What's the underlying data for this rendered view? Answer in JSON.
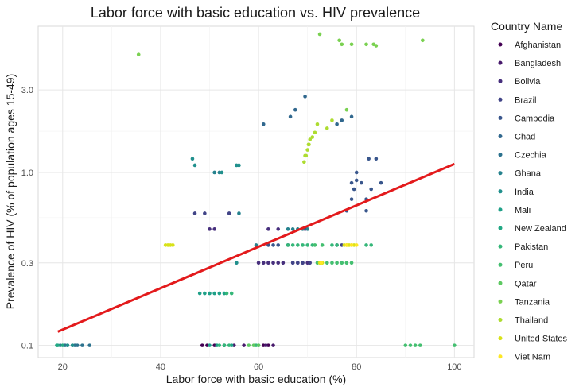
{
  "chart_data": {
    "type": "scatter",
    "title": "Labor force with basic education vs. HIV prevalence",
    "xlabel": "Labor force with basic education (%)",
    "ylabel": "Prevalence of HIV (% of population ages 15-49)",
    "xlim": [
      15,
      104
    ],
    "ylim": [
      0.085,
      7.0
    ],
    "y_scale": "log10",
    "x_ticks": [
      20,
      40,
      60,
      80,
      100
    ],
    "y_ticks": [
      0.1,
      0.3,
      1.0,
      3.0
    ],
    "y_tick_labels": [
      "0.1",
      "0.3",
      "1.0",
      "3.0"
    ],
    "grid": true,
    "legend_title": "Country Name",
    "legend_position": "right",
    "trend_line": {
      "color": "#e31a1c",
      "x": [
        19,
        100
      ],
      "y": [
        0.12,
        1.12
      ]
    },
    "series": [
      {
        "name": "Afghanistan",
        "color": "#440154",
        "points": [
          [
            48.5,
            0.1
          ],
          [
            49.5,
            0.1
          ],
          [
            51,
            0.1
          ],
          [
            53,
            0.1
          ],
          [
            61,
            0.1
          ],
          [
            62,
            0.1
          ]
        ]
      },
      {
        "name": "Bangladesh",
        "color": "#481a6c",
        "points": [
          [
            55,
            0.1
          ],
          [
            57,
            0.1
          ],
          [
            61.5,
            0.1
          ],
          [
            63,
            0.1
          ]
        ]
      },
      {
        "name": "Bolivia",
        "color": "#472f7d",
        "points": [
          [
            50,
            0.47
          ],
          [
            51,
            0.47
          ],
          [
            62,
            0.47
          ],
          [
            64,
            0.47
          ],
          [
            69.5,
            0.47
          ],
          [
            60,
            0.3
          ],
          [
            61,
            0.3
          ],
          [
            62,
            0.3
          ],
          [
            63,
            0.3
          ],
          [
            64,
            0.3
          ],
          [
            65,
            0.3
          ],
          [
            67,
            0.3
          ],
          [
            68,
            0.3
          ],
          [
            69,
            0.3
          ],
          [
            70,
            0.3
          ]
        ]
      },
      {
        "name": "Brazil",
        "color": "#414487",
        "points": [
          [
            47,
            0.58
          ],
          [
            49,
            0.58
          ],
          [
            54,
            0.58
          ],
          [
            66,
            0.38
          ],
          [
            67,
            0.3
          ],
          [
            68,
            0.3
          ],
          [
            69,
            0.3
          ],
          [
            70.5,
            0.3
          ],
          [
            76,
            0.38
          ],
          [
            77,
            0.38
          ]
        ]
      },
      {
        "name": "Cambodia",
        "color": "#39568c",
        "points": [
          [
            78,
            0.6
          ],
          [
            79,
            0.7
          ],
          [
            79.5,
            0.8
          ],
          [
            80,
            0.9
          ],
          [
            82,
            0.7
          ],
          [
            83,
            0.8
          ],
          [
            79,
            0.87
          ],
          [
            80,
            1.0
          ],
          [
            81,
            0.87
          ],
          [
            82,
            0.6
          ],
          [
            84,
            1.2
          ],
          [
            85,
            0.87
          ],
          [
            82.5,
            1.2
          ],
          [
            62,
            0.38
          ],
          [
            63,
            0.38
          ],
          [
            64,
            0.38
          ]
        ]
      },
      {
        "name": "Chad",
        "color": "#31688e",
        "points": [
          [
            61,
            1.9
          ],
          [
            66.5,
            2.1
          ],
          [
            67.5,
            2.3
          ],
          [
            69.5,
            2.75
          ],
          [
            76,
            1.9
          ],
          [
            77,
            2.0
          ],
          [
            79,
            2.1
          ]
        ]
      },
      {
        "name": "Czechia",
        "color": "#2c728e",
        "points": [
          [
            19.5,
            0.1
          ],
          [
            20.5,
            0.1
          ],
          [
            21,
            0.1
          ],
          [
            22,
            0.1
          ],
          [
            22.5,
            0.1
          ],
          [
            23,
            0.1
          ],
          [
            24,
            0.1
          ],
          [
            25.5,
            0.1
          ]
        ]
      },
      {
        "name": "Ghana",
        "color": "#26828e",
        "points": [
          [
            51,
            1.0
          ],
          [
            52,
            1.0
          ],
          [
            56,
            0.58
          ],
          [
            59.5,
            0.38
          ],
          [
            66,
            0.47
          ],
          [
            67,
            0.47
          ],
          [
            68,
            0.47
          ],
          [
            69,
            0.47
          ],
          [
            70,
            0.47
          ]
        ]
      },
      {
        "name": "India",
        "color": "#21908d",
        "points": [
          [
            46.5,
            1.2
          ],
          [
            47,
            1.1
          ],
          [
            52.5,
            1.0
          ],
          [
            55.5,
            1.1
          ],
          [
            56,
            1.1
          ],
          [
            55.5,
            0.3
          ],
          [
            21,
            0.1
          ],
          [
            22,
            0.1
          ]
        ]
      },
      {
        "name": "Mali",
        "color": "#1fa088",
        "points": [
          [
            48,
            0.2
          ],
          [
            49,
            0.2
          ],
          [
            50,
            0.2
          ],
          [
            51,
            0.2
          ],
          [
            52,
            0.2
          ],
          [
            53,
            0.2
          ],
          [
            50,
            0.1
          ],
          [
            51.5,
            0.1
          ],
          [
            53,
            0.1
          ],
          [
            54.5,
            0.1
          ]
        ]
      },
      {
        "name": "New Zealand",
        "color": "#22a884",
        "points": [
          [
            19,
            0.1
          ],
          [
            20,
            0.1
          ],
          [
            18.8,
            0.1
          ]
        ]
      },
      {
        "name": "Pakistan",
        "color": "#35b779",
        "points": [
          [
            53.5,
            0.2
          ],
          [
            54.5,
            0.2
          ],
          [
            66,
            0.38
          ],
          [
            67,
            0.38
          ],
          [
            68,
            0.38
          ],
          [
            69,
            0.38
          ],
          [
            70,
            0.38
          ],
          [
            71,
            0.38
          ],
          [
            75,
            0.38
          ],
          [
            76,
            0.38
          ],
          [
            82,
            0.38
          ],
          [
            83,
            0.38
          ],
          [
            52,
            0.1
          ],
          [
            53,
            0.1
          ],
          [
            54,
            0.1
          ],
          [
            59.5,
            0.1
          ],
          [
            60,
            0.1
          ]
        ]
      },
      {
        "name": "Peru",
        "color": "#44bf70",
        "points": [
          [
            71.5,
            0.38
          ],
          [
            73,
            0.38
          ],
          [
            74,
            0.3
          ],
          [
            75,
            0.3
          ],
          [
            76,
            0.3
          ],
          [
            77,
            0.3
          ],
          [
            78,
            0.3
          ],
          [
            79,
            0.3
          ],
          [
            72,
            0.3
          ],
          [
            90,
            0.1
          ],
          [
            91,
            0.1
          ],
          [
            92,
            0.1
          ],
          [
            93,
            0.1
          ],
          [
            100,
            0.1
          ]
        ]
      },
      {
        "name": "Qatar",
        "color": "#5ec962",
        "points": [
          [
            58,
            0.1
          ],
          [
            59,
            0.1
          ],
          [
            60,
            0.1
          ]
        ]
      },
      {
        "name": "Tanzania",
        "color": "#7ad151",
        "points": [
          [
            35.5,
            4.8
          ],
          [
            72.5,
            6.3
          ],
          [
            76.5,
            5.8
          ],
          [
            77,
            5.5
          ],
          [
            79,
            5.5
          ],
          [
            82,
            5.5
          ],
          [
            83.5,
            5.5
          ],
          [
            84,
            5.4
          ],
          [
            93.5,
            5.8
          ],
          [
            78,
            2.3
          ]
        ]
      },
      {
        "name": "Thailand",
        "color": "#addc30",
        "points": [
          [
            69.5,
            1.25
          ],
          [
            70,
            1.35
          ],
          [
            70.2,
            1.45
          ],
          [
            70.5,
            1.55
          ],
          [
            71,
            1.6
          ],
          [
            71.5,
            1.7
          ],
          [
            72,
            1.9
          ],
          [
            74,
            1.8
          ],
          [
            75,
            2.0
          ],
          [
            69.3,
            1.15
          ],
          [
            69.7,
            1.25
          ],
          [
            70.3,
            1.45
          ]
        ]
      },
      {
        "name": "United States",
        "color": "#d8e219",
        "points": [
          [
            41,
            0.38
          ],
          [
            41.5,
            0.38
          ],
          [
            42,
            0.38
          ],
          [
            42.5,
            0.38
          ],
          [
            72.5,
            0.3
          ],
          [
            73,
            0.3
          ],
          [
            77.5,
            0.38
          ],
          [
            78,
            0.38
          ],
          [
            78.5,
            0.38
          ],
          [
            79,
            0.38
          ],
          [
            79.5,
            0.38
          ]
        ]
      },
      {
        "name": "Viet Nam",
        "color": "#fde725",
        "points": [
          [
            72.8,
            0.3
          ],
          [
            78,
            0.38
          ],
          [
            79,
            0.38
          ],
          [
            80,
            0.38
          ]
        ]
      }
    ]
  }
}
